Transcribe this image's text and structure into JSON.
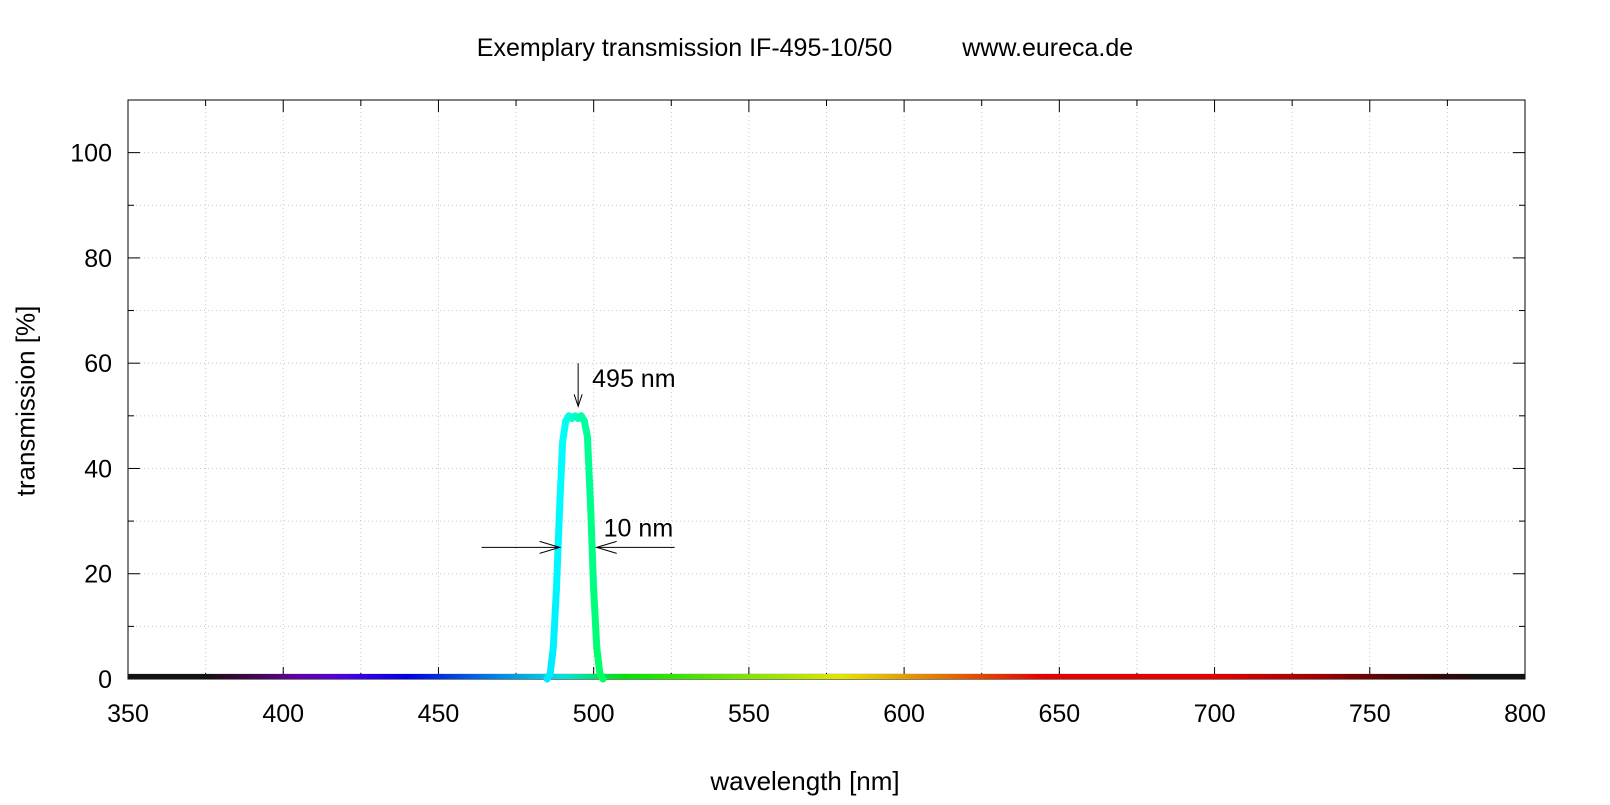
{
  "chart_data": {
    "type": "line",
    "title": "Exemplary transmission IF-495-10/50",
    "subtitle": "www.eureca.de",
    "xlabel": "wavelength [nm]",
    "ylabel": "transmission [%]",
    "xlim": [
      350,
      800
    ],
    "ylim": [
      0,
      110
    ],
    "xticks": [
      350,
      400,
      450,
      500,
      550,
      600,
      650,
      700,
      750,
      800
    ],
    "yticks": [
      0,
      20,
      40,
      60,
      80,
      100
    ],
    "grid": true,
    "legend": "none",
    "series": [
      {
        "x": [
          350,
          400,
          450,
          485,
          486,
          487,
          488,
          489,
          490,
          491,
          492,
          493,
          494,
          495,
          496,
          497,
          498,
          499,
          500,
          501,
          502,
          503,
          504,
          550,
          600,
          650,
          700,
          750,
          800
        ],
        "y": [
          0,
          0,
          0,
          0,
          1,
          6,
          17,
          32,
          45,
          49,
          50,
          49.5,
          50,
          49.5,
          50,
          49,
          46,
          33,
          17,
          6,
          1,
          0,
          0,
          0,
          0,
          0,
          0,
          0,
          0
        ]
      }
    ],
    "annotations": [
      {
        "text": "495 nm",
        "x": 495,
        "y": 54,
        "arrow": "down"
      },
      {
        "text": "10 nm",
        "x": 490,
        "y": 25,
        "arrow": "fwhm-inward",
        "x2": 500
      }
    ]
  }
}
